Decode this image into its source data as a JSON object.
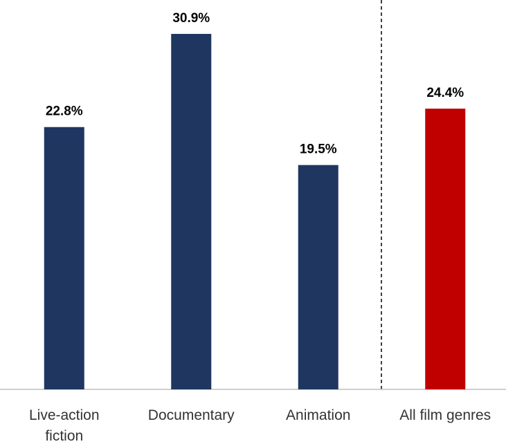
{
  "chart_data": {
    "type": "bar",
    "categories": [
      "Live-action fiction",
      "Documentary",
      "Animation",
      "All film genres"
    ],
    "values": [
      22.8,
      30.9,
      19.5,
      24.4
    ],
    "value_labels": [
      "22.8%",
      "30.9%",
      "19.5%",
      "24.4%"
    ],
    "colors": [
      "#1f3660",
      "#1f3660",
      "#1f3660",
      "#c00000"
    ]
  }
}
